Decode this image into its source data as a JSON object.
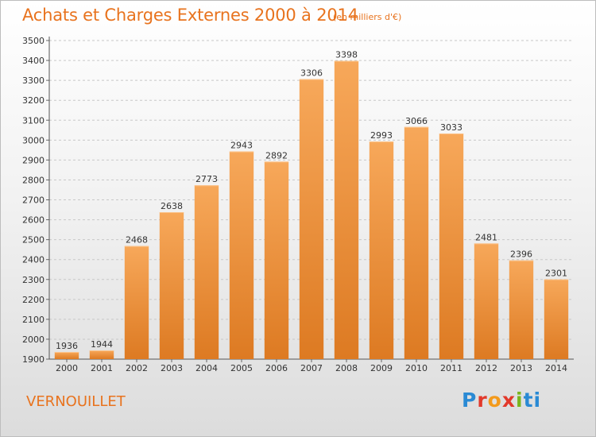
{
  "header": {
    "title": "Achats et Charges Externes 2000 à 2014",
    "subtitle": "(en milliers d'€)"
  },
  "footer": {
    "city": "VERNOUILLET",
    "logo_letters": [
      "P",
      "r",
      "o",
      "x",
      "i",
      "ti"
    ]
  },
  "colors": {
    "accent": "#e8731e",
    "bar_top": "#f7a85a",
    "bar_bottom": "#dd7a22"
  },
  "chart_data": {
    "type": "bar",
    "title": "Achats et Charges Externes 2000 à 2014",
    "subtitle": "(en milliers d'€)",
    "xlabel": "",
    "ylabel": "",
    "categories": [
      "2000",
      "2001",
      "2002",
      "2003",
      "2004",
      "2005",
      "2006",
      "2007",
      "2008",
      "2009",
      "2010",
      "2011",
      "2012",
      "2013",
      "2014"
    ],
    "values": [
      1936,
      1944,
      2468,
      2638,
      2773,
      2943,
      2892,
      3306,
      3398,
      2993,
      3066,
      3033,
      2481,
      2396,
      2301
    ],
    "ylim": [
      1900,
      3500
    ],
    "yticks": [
      1900,
      2000,
      2100,
      2200,
      2300,
      2400,
      2500,
      2600,
      2700,
      2800,
      2900,
      3000,
      3100,
      3200,
      3300,
      3400,
      3500
    ],
    "grid": true,
    "legend": "none"
  }
}
